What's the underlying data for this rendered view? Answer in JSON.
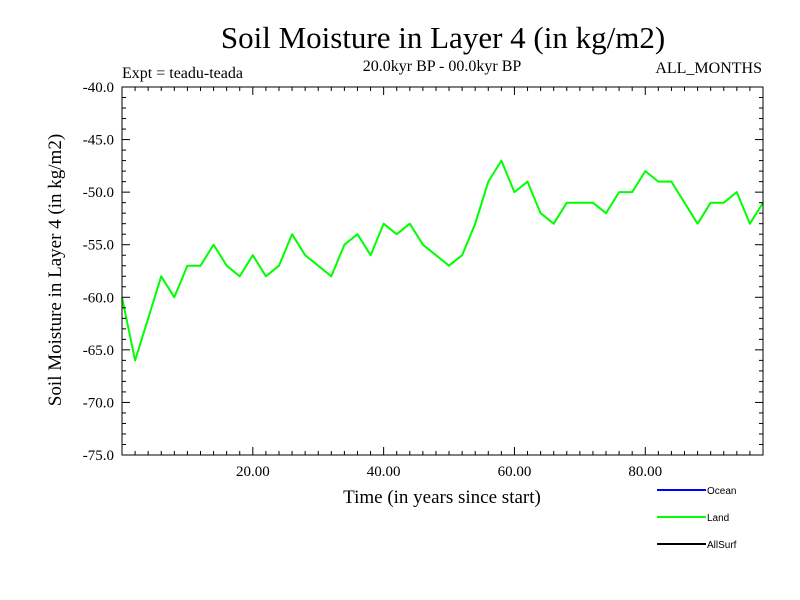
{
  "chart_data": {
    "type": "line",
    "title": "Soil Moisture in Layer 4 (in kg/m2)",
    "subtitle_left": "Expt = teadu-teada",
    "subtitle_center": "20.0kyr BP - 00.0kyr BP",
    "subtitle_right": "ALL_MONTHS",
    "xlabel": "Time (in years since start)",
    "ylabel": "Soil Moisture in Layer 4 (in kg/m2)",
    "xlim": [
      0,
      98
    ],
    "ylim": [
      -75,
      -40
    ],
    "x_ticks": [
      20,
      40,
      60,
      80
    ],
    "x_tick_labels": [
      "20.00",
      "40.00",
      "60.00",
      "80.00"
    ],
    "y_ticks": [
      -40,
      -45,
      -50,
      -55,
      -60,
      -65,
      -70,
      -75
    ],
    "y_tick_labels": [
      "-40.0",
      "-45.0",
      "-50.0",
      "-55.0",
      "-60.0",
      "-65.0",
      "-70.0",
      "-75.0"
    ],
    "legend": [
      {
        "name": "Ocean",
        "color": "#0000ff"
      },
      {
        "name": "Land",
        "color": "#00ff00"
      },
      {
        "name": "AllSurf",
        "color": "#000000"
      }
    ],
    "legend_position": "bottom-right",
    "series": [
      {
        "name": "Land",
        "color": "#00ff00",
        "x": [
          0,
          2,
          4,
          6,
          8,
          10,
          12,
          14,
          16,
          18,
          20,
          22,
          24,
          26,
          28,
          30,
          32,
          34,
          36,
          38,
          40,
          42,
          44,
          46,
          48,
          50,
          52,
          54,
          56,
          58,
          60,
          62,
          64,
          66,
          68,
          70,
          72,
          74,
          76,
          78,
          80,
          82,
          84,
          86,
          88,
          90,
          92,
          94,
          96,
          98
        ],
        "values": [
          -60,
          -66,
          -62,
          -58,
          -60,
          -57,
          -57,
          -55,
          -57,
          -58,
          -56,
          -58,
          -57,
          -54,
          -56,
          -57,
          -58,
          -55,
          -54,
          -56,
          -53,
          -54,
          -53,
          -55,
          -56,
          -57,
          -56,
          -53,
          -49,
          -47,
          -50,
          -49,
          -52,
          -53,
          -51,
          -51,
          -51,
          -52,
          -50,
          -50,
          -48,
          -49,
          -49,
          -51,
          -53,
          -51,
          -51,
          -50,
          -53,
          -51
        ]
      }
    ]
  }
}
